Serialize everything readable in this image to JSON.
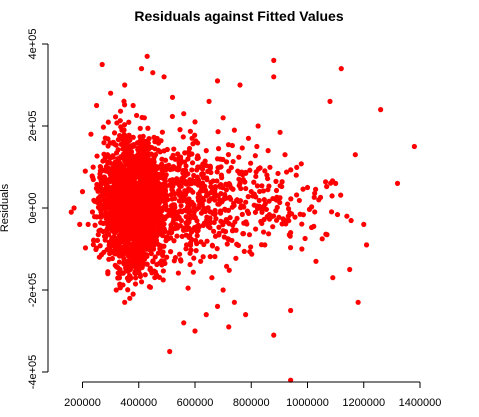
{
  "chart_data": {
    "type": "scatter",
    "title": "Residuals against Fitted Values",
    "xlabel": "",
    "ylabel": "Residuals",
    "xlim": [
      120000,
      1400000
    ],
    "ylim": [
      -400000,
      400000
    ],
    "x_ticks": [
      200000,
      400000,
      600000,
      800000,
      1000000,
      1200000,
      1400000
    ],
    "x_tick_labels": [
      "200000",
      "400000",
      "600000",
      "800000",
      "1000000",
      "1200000",
      "1400000"
    ],
    "y_ticks": [
      -400000,
      -200000,
      0,
      200000,
      400000
    ],
    "y_tick_labels": [
      "-4e+05",
      "-2e+05",
      "0e+00",
      "2e+05",
      "4e+05"
    ],
    "point_color": "#ff0000",
    "grid": false,
    "legend": "none",
    "note": "Dense cloud of about 3,000 points centred near fitted 330,000–450,000 with residuals mostly within ±250,000; points listed below are individually readable outliers and cluster samples.",
    "points": [
      [
        430000,
        370000
      ],
      [
        410000,
        340000
      ],
      [
        450000,
        330000
      ],
      [
        490000,
        320000
      ],
      [
        270000,
        350000
      ],
      [
        880000,
        360000
      ],
      [
        880000,
        320000
      ],
      [
        1120000,
        340000
      ],
      [
        760000,
        300000
      ],
      [
        680000,
        310000
      ],
      [
        1080000,
        260000
      ],
      [
        1260000,
        240000
      ],
      [
        1380000,
        150000
      ],
      [
        1320000,
        60000
      ],
      [
        1170000,
        130000
      ],
      [
        1180000,
        -230000
      ],
      [
        940000,
        -420000
      ],
      [
        510000,
        -350000
      ],
      [
        880000,
        -310000
      ],
      [
        940000,
        -250000
      ],
      [
        170000,
        0
      ],
      [
        190000,
        -40000
      ],
      [
        160000,
        -10000
      ],
      [
        210000,
        90000
      ],
      [
        230000,
        180000
      ],
      [
        250000,
        250000
      ],
      [
        300000,
        280000
      ],
      [
        350000,
        300000
      ],
      [
        380000,
        250000
      ],
      [
        420000,
        220000
      ],
      [
        520000,
        270000
      ],
      [
        560000,
        230000
      ],
      [
        600000,
        210000
      ],
      [
        650000,
        260000
      ],
      [
        700000,
        220000
      ],
      [
        740000,
        190000
      ],
      [
        790000,
        170000
      ],
      [
        820000,
        150000
      ],
      [
        860000,
        140000
      ],
      [
        920000,
        130000
      ],
      [
        960000,
        80000
      ],
      [
        1000000,
        50000
      ],
      [
        1040000,
        20000
      ],
      [
        1100000,
        60000
      ],
      [
        1140000,
        -20000
      ],
      [
        1200000,
        -40000
      ],
      [
        1210000,
        -90000
      ],
      [
        1150000,
        -150000
      ],
      [
        1090000,
        -170000
      ],
      [
        1030000,
        -130000
      ],
      [
        980000,
        -100000
      ],
      [
        940000,
        -60000
      ],
      [
        890000,
        -30000
      ],
      [
        850000,
        10000
      ],
      [
        800000,
        40000
      ],
      [
        760000,
        60000
      ],
      [
        720000,
        90000
      ],
      [
        680000,
        120000
      ],
      [
        640000,
        140000
      ],
      [
        610000,
        100000
      ],
      [
        580000,
        60000
      ],
      [
        550000,
        30000
      ],
      [
        520000,
        -20000
      ],
      [
        500000,
        -70000
      ],
      [
        470000,
        -110000
      ],
      [
        440000,
        -150000
      ],
      [
        410000,
        -180000
      ],
      [
        380000,
        -210000
      ],
      [
        350000,
        -230000
      ],
      [
        320000,
        -200000
      ],
      [
        290000,
        -160000
      ],
      [
        260000,
        -120000
      ],
      [
        240000,
        -80000
      ],
      [
        220000,
        -40000
      ],
      [
        200000,
        40000
      ],
      [
        280000,
        120000
      ],
      [
        310000,
        160000
      ],
      [
        340000,
        190000
      ],
      [
        370000,
        140000
      ],
      [
        400000,
        110000
      ],
      [
        430000,
        80000
      ],
      [
        460000,
        50000
      ],
      [
        490000,
        20000
      ],
      [
        530000,
        -50000
      ],
      [
        570000,
        -90000
      ],
      [
        620000,
        -130000
      ],
      [
        660000,
        -170000
      ],
      [
        700000,
        -200000
      ],
      [
        740000,
        -230000
      ],
      [
        780000,
        -260000
      ],
      [
        560000,
        -280000
      ],
      [
        600000,
        -300000
      ],
      [
        640000,
        -260000
      ],
      [
        680000,
        -240000
      ],
      [
        720000,
        -290000
      ],
      [
        340000,
        20000
      ],
      [
        360000,
        -20000
      ],
      [
        390000,
        10000
      ],
      [
        420000,
        -40000
      ],
      [
        450000,
        0
      ]
    ]
  }
}
